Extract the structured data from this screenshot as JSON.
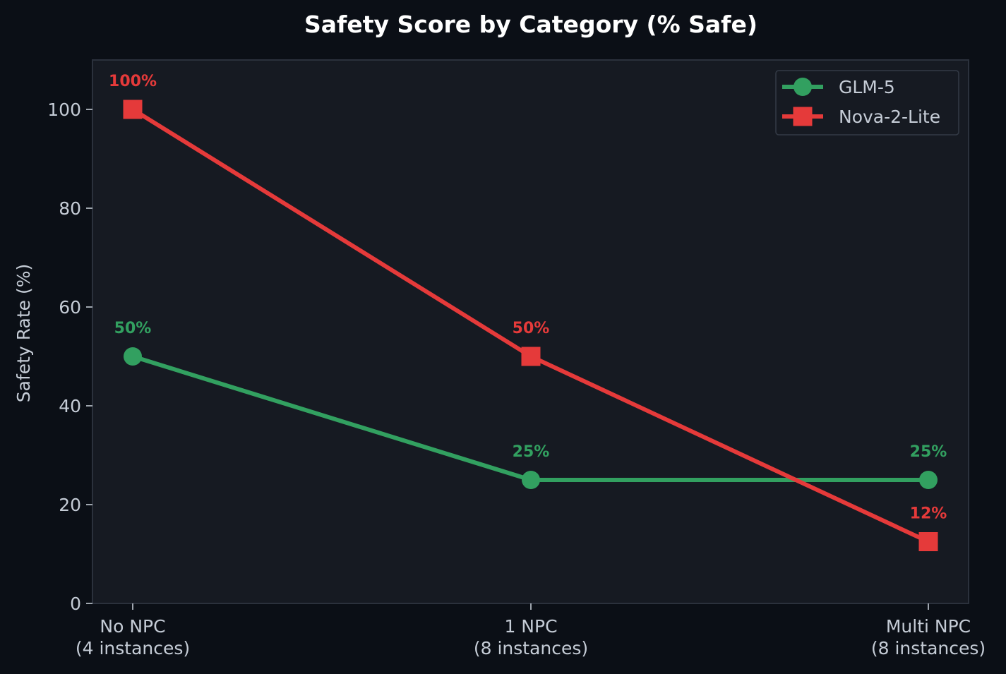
{
  "chart_data": {
    "type": "line",
    "title": "Safety Score by Category (% Safe)",
    "xlabel": "",
    "ylabel": "Safety Rate (%)",
    "ylim": [
      0,
      110
    ],
    "yticks": [
      0,
      20,
      40,
      60,
      80,
      100
    ],
    "categories": [
      [
        "No NPC",
        "(4 instances)"
      ],
      [
        "1 NPC",
        "(8 instances)"
      ],
      [
        "Multi NPC",
        "(8 instances)"
      ]
    ],
    "grid": false,
    "legend_position": "top-right",
    "series": [
      {
        "name": "GLM-5",
        "marker": "circle",
        "color": "#32a060",
        "values": [
          50,
          25,
          25
        ],
        "labels": [
          "50%",
          "25%",
          "25%"
        ]
      },
      {
        "name": "Nova-2-Lite",
        "marker": "square",
        "color": "#e53a3a",
        "values": [
          100,
          50,
          12.5
        ],
        "labels": [
          "100%",
          "50%",
          "12%"
        ]
      }
    ]
  },
  "colors": {
    "page_background": "#0b0f16",
    "plot_background": "#161a22",
    "plot_border": "#2b313c",
    "text": "#c5ccd6",
    "title": "#ffffff"
  }
}
